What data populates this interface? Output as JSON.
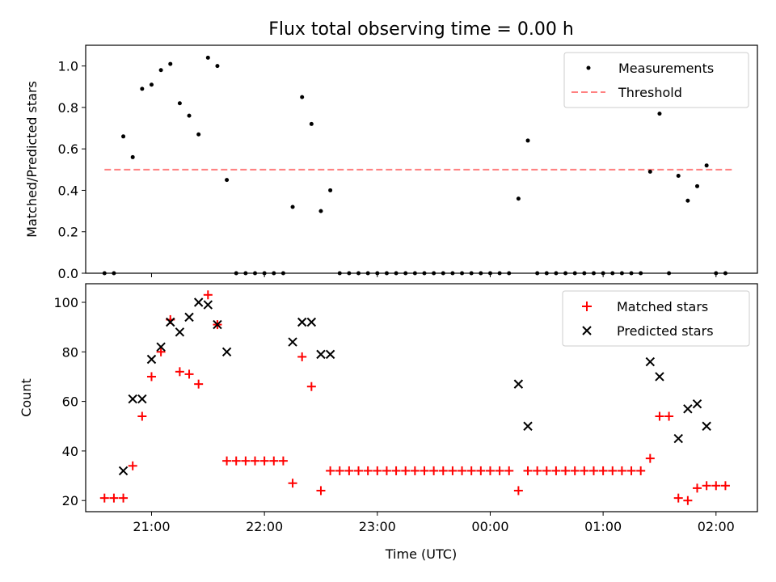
{
  "chart_data": [
    {
      "type": "scatter",
      "title": "Flux total observing time = 0.00 h",
      "xlabel": "",
      "ylabel": "Matched/Predicted stars",
      "xlim": [
        "20:25",
        "02:22"
      ],
      "ylim": [
        0.0,
        1.1
      ],
      "yticks": [
        0.0,
        0.2,
        0.4,
        0.6,
        0.8,
        1.0
      ],
      "ytick_labels": [
        "0.0",
        "0.2",
        "0.4",
        "0.6",
        "0.8",
        "1.0"
      ],
      "grid": false,
      "legend_position": "top-right",
      "legend": [
        "Measurements",
        "Threshold"
      ],
      "threshold": {
        "value": 0.5,
        "x_start": "20:35",
        "x_end": "02:10",
        "color": "#ff8080"
      },
      "series": [
        {
          "name": "Measurements",
          "color": "#000000",
          "marker": "dot",
          "points": [
            [
              "20:35",
              0.0
            ],
            [
              "20:40",
              0.0
            ],
            [
              "20:45",
              0.66
            ],
            [
              "20:50",
              0.56
            ],
            [
              "20:55",
              0.89
            ],
            [
              "21:00",
              0.91
            ],
            [
              "21:05",
              0.98
            ],
            [
              "21:10",
              1.01
            ],
            [
              "21:15",
              0.82
            ],
            [
              "21:20",
              0.76
            ],
            [
              "21:25",
              0.67
            ],
            [
              "21:30",
              1.04
            ],
            [
              "21:35",
              1.0
            ],
            [
              "21:40",
              0.45
            ],
            [
              "21:45",
              0.0
            ],
            [
              "21:50",
              0.0
            ],
            [
              "21:55",
              0.0
            ],
            [
              "22:00",
              0.0
            ],
            [
              "22:05",
              0.0
            ],
            [
              "22:10",
              0.0
            ],
            [
              "22:15",
              0.32
            ],
            [
              "22:20",
              0.85
            ],
            [
              "22:25",
              0.72
            ],
            [
              "22:30",
              0.3
            ],
            [
              "22:35",
              0.4
            ],
            [
              "22:40",
              0.0
            ],
            [
              "22:45",
              0.0
            ],
            [
              "22:50",
              0.0
            ],
            [
              "22:55",
              0.0
            ],
            [
              "23:00",
              0.0
            ],
            [
              "23:05",
              0.0
            ],
            [
              "23:10",
              0.0
            ],
            [
              "23:15",
              0.0
            ],
            [
              "23:20",
              0.0
            ],
            [
              "23:25",
              0.0
            ],
            [
              "23:30",
              0.0
            ],
            [
              "23:35",
              0.0
            ],
            [
              "23:40",
              0.0
            ],
            [
              "23:45",
              0.0
            ],
            [
              "23:50",
              0.0
            ],
            [
              "23:55",
              0.0
            ],
            [
              "00:00",
              0.0
            ],
            [
              "00:05",
              0.0
            ],
            [
              "00:10",
              0.0
            ],
            [
              "00:15",
              0.36
            ],
            [
              "00:20",
              0.64
            ],
            [
              "00:25",
              0.0
            ],
            [
              "00:30",
              0.0
            ],
            [
              "00:35",
              0.0
            ],
            [
              "00:40",
              0.0
            ],
            [
              "00:45",
              0.0
            ],
            [
              "00:50",
              0.0
            ],
            [
              "00:55",
              0.0
            ],
            [
              "01:00",
              0.0
            ],
            [
              "01:05",
              0.0
            ],
            [
              "01:10",
              0.0
            ],
            [
              "01:15",
              0.0
            ],
            [
              "01:20",
              0.0
            ],
            [
              "01:25",
              0.49
            ],
            [
              "01:30",
              0.77
            ],
            [
              "01:35",
              0.0
            ],
            [
              "01:40",
              0.47
            ],
            [
              "01:45",
              0.35
            ],
            [
              "01:50",
              0.42
            ],
            [
              "01:55",
              0.52
            ],
            [
              "02:00",
              0.0
            ],
            [
              "02:05",
              0.0
            ]
          ]
        }
      ]
    },
    {
      "type": "scatter",
      "title": "",
      "xlabel": "Time (UTC)",
      "ylabel": "Count",
      "xlim": [
        "20:25",
        "02:22"
      ],
      "ylim": [
        15.5,
        107.5
      ],
      "xticks": [
        "21:00",
        "22:00",
        "23:00",
        "00:00",
        "01:00",
        "02:00"
      ],
      "yticks": [
        20,
        40,
        60,
        80,
        100
      ],
      "grid": false,
      "legend_position": "top-right",
      "legend": [
        "Matched stars",
        "Predicted stars"
      ],
      "series": [
        {
          "name": "Matched stars",
          "color": "#ff0000",
          "marker": "plus",
          "points": [
            [
              "20:35",
              21
            ],
            [
              "20:40",
              21
            ],
            [
              "20:45",
              21
            ],
            [
              "20:50",
              34
            ],
            [
              "20:55",
              54
            ],
            [
              "21:00",
              70
            ],
            [
              "21:05",
              80
            ],
            [
              "21:10",
              93
            ],
            [
              "21:15",
              72
            ],
            [
              "21:20",
              71
            ],
            [
              "21:25",
              67
            ],
            [
              "21:30",
              103
            ],
            [
              "21:35",
              91
            ],
            [
              "21:40",
              36
            ],
            [
              "21:45",
              36
            ],
            [
              "21:50",
              36
            ],
            [
              "21:55",
              36
            ],
            [
              "22:00",
              36
            ],
            [
              "22:05",
              36
            ],
            [
              "22:10",
              36
            ],
            [
              "22:15",
              27
            ],
            [
              "22:20",
              78
            ],
            [
              "22:25",
              66
            ],
            [
              "22:30",
              24
            ],
            [
              "22:35",
              32
            ],
            [
              "22:40",
              32
            ],
            [
              "22:45",
              32
            ],
            [
              "22:50",
              32
            ],
            [
              "22:55",
              32
            ],
            [
              "23:00",
              32
            ],
            [
              "23:05",
              32
            ],
            [
              "23:10",
              32
            ],
            [
              "23:15",
              32
            ],
            [
              "23:20",
              32
            ],
            [
              "23:25",
              32
            ],
            [
              "23:30",
              32
            ],
            [
              "23:35",
              32
            ],
            [
              "23:40",
              32
            ],
            [
              "23:45",
              32
            ],
            [
              "23:50",
              32
            ],
            [
              "23:55",
              32
            ],
            [
              "00:00",
              32
            ],
            [
              "00:05",
              32
            ],
            [
              "00:10",
              32
            ],
            [
              "00:15",
              24
            ],
            [
              "00:20",
              32
            ],
            [
              "00:25",
              32
            ],
            [
              "00:30",
              32
            ],
            [
              "00:35",
              32
            ],
            [
              "00:40",
              32
            ],
            [
              "00:45",
              32
            ],
            [
              "00:50",
              32
            ],
            [
              "00:55",
              32
            ],
            [
              "01:00",
              32
            ],
            [
              "01:05",
              32
            ],
            [
              "01:10",
              32
            ],
            [
              "01:15",
              32
            ],
            [
              "01:20",
              32
            ],
            [
              "01:25",
              37
            ],
            [
              "01:30",
              54
            ],
            [
              "01:35",
              54
            ],
            [
              "01:40",
              21
            ],
            [
              "01:45",
              20
            ],
            [
              "01:50",
              25
            ],
            [
              "01:55",
              26
            ],
            [
              "02:00",
              26
            ],
            [
              "02:05",
              26
            ]
          ]
        },
        {
          "name": "Predicted stars",
          "color": "#000000",
          "marker": "x",
          "points": [
            [
              "20:45",
              32
            ],
            [
              "20:50",
              61
            ],
            [
              "20:55",
              61
            ],
            [
              "21:00",
              77
            ],
            [
              "21:05",
              82
            ],
            [
              "21:10",
              92
            ],
            [
              "21:15",
              88
            ],
            [
              "21:20",
              94
            ],
            [
              "21:25",
              100
            ],
            [
              "21:30",
              99
            ],
            [
              "21:35",
              91
            ],
            [
              "21:40",
              80
            ],
            [
              "22:15",
              84
            ],
            [
              "22:20",
              92
            ],
            [
              "22:25",
              92
            ],
            [
              "22:30",
              79
            ],
            [
              "22:35",
              79
            ],
            [
              "00:15",
              67
            ],
            [
              "00:20",
              50
            ],
            [
              "01:25",
              76
            ],
            [
              "01:30",
              70
            ],
            [
              "01:40",
              45
            ],
            [
              "01:45",
              57
            ],
            [
              "01:50",
              59
            ],
            [
              "01:55",
              50
            ]
          ]
        }
      ]
    }
  ]
}
